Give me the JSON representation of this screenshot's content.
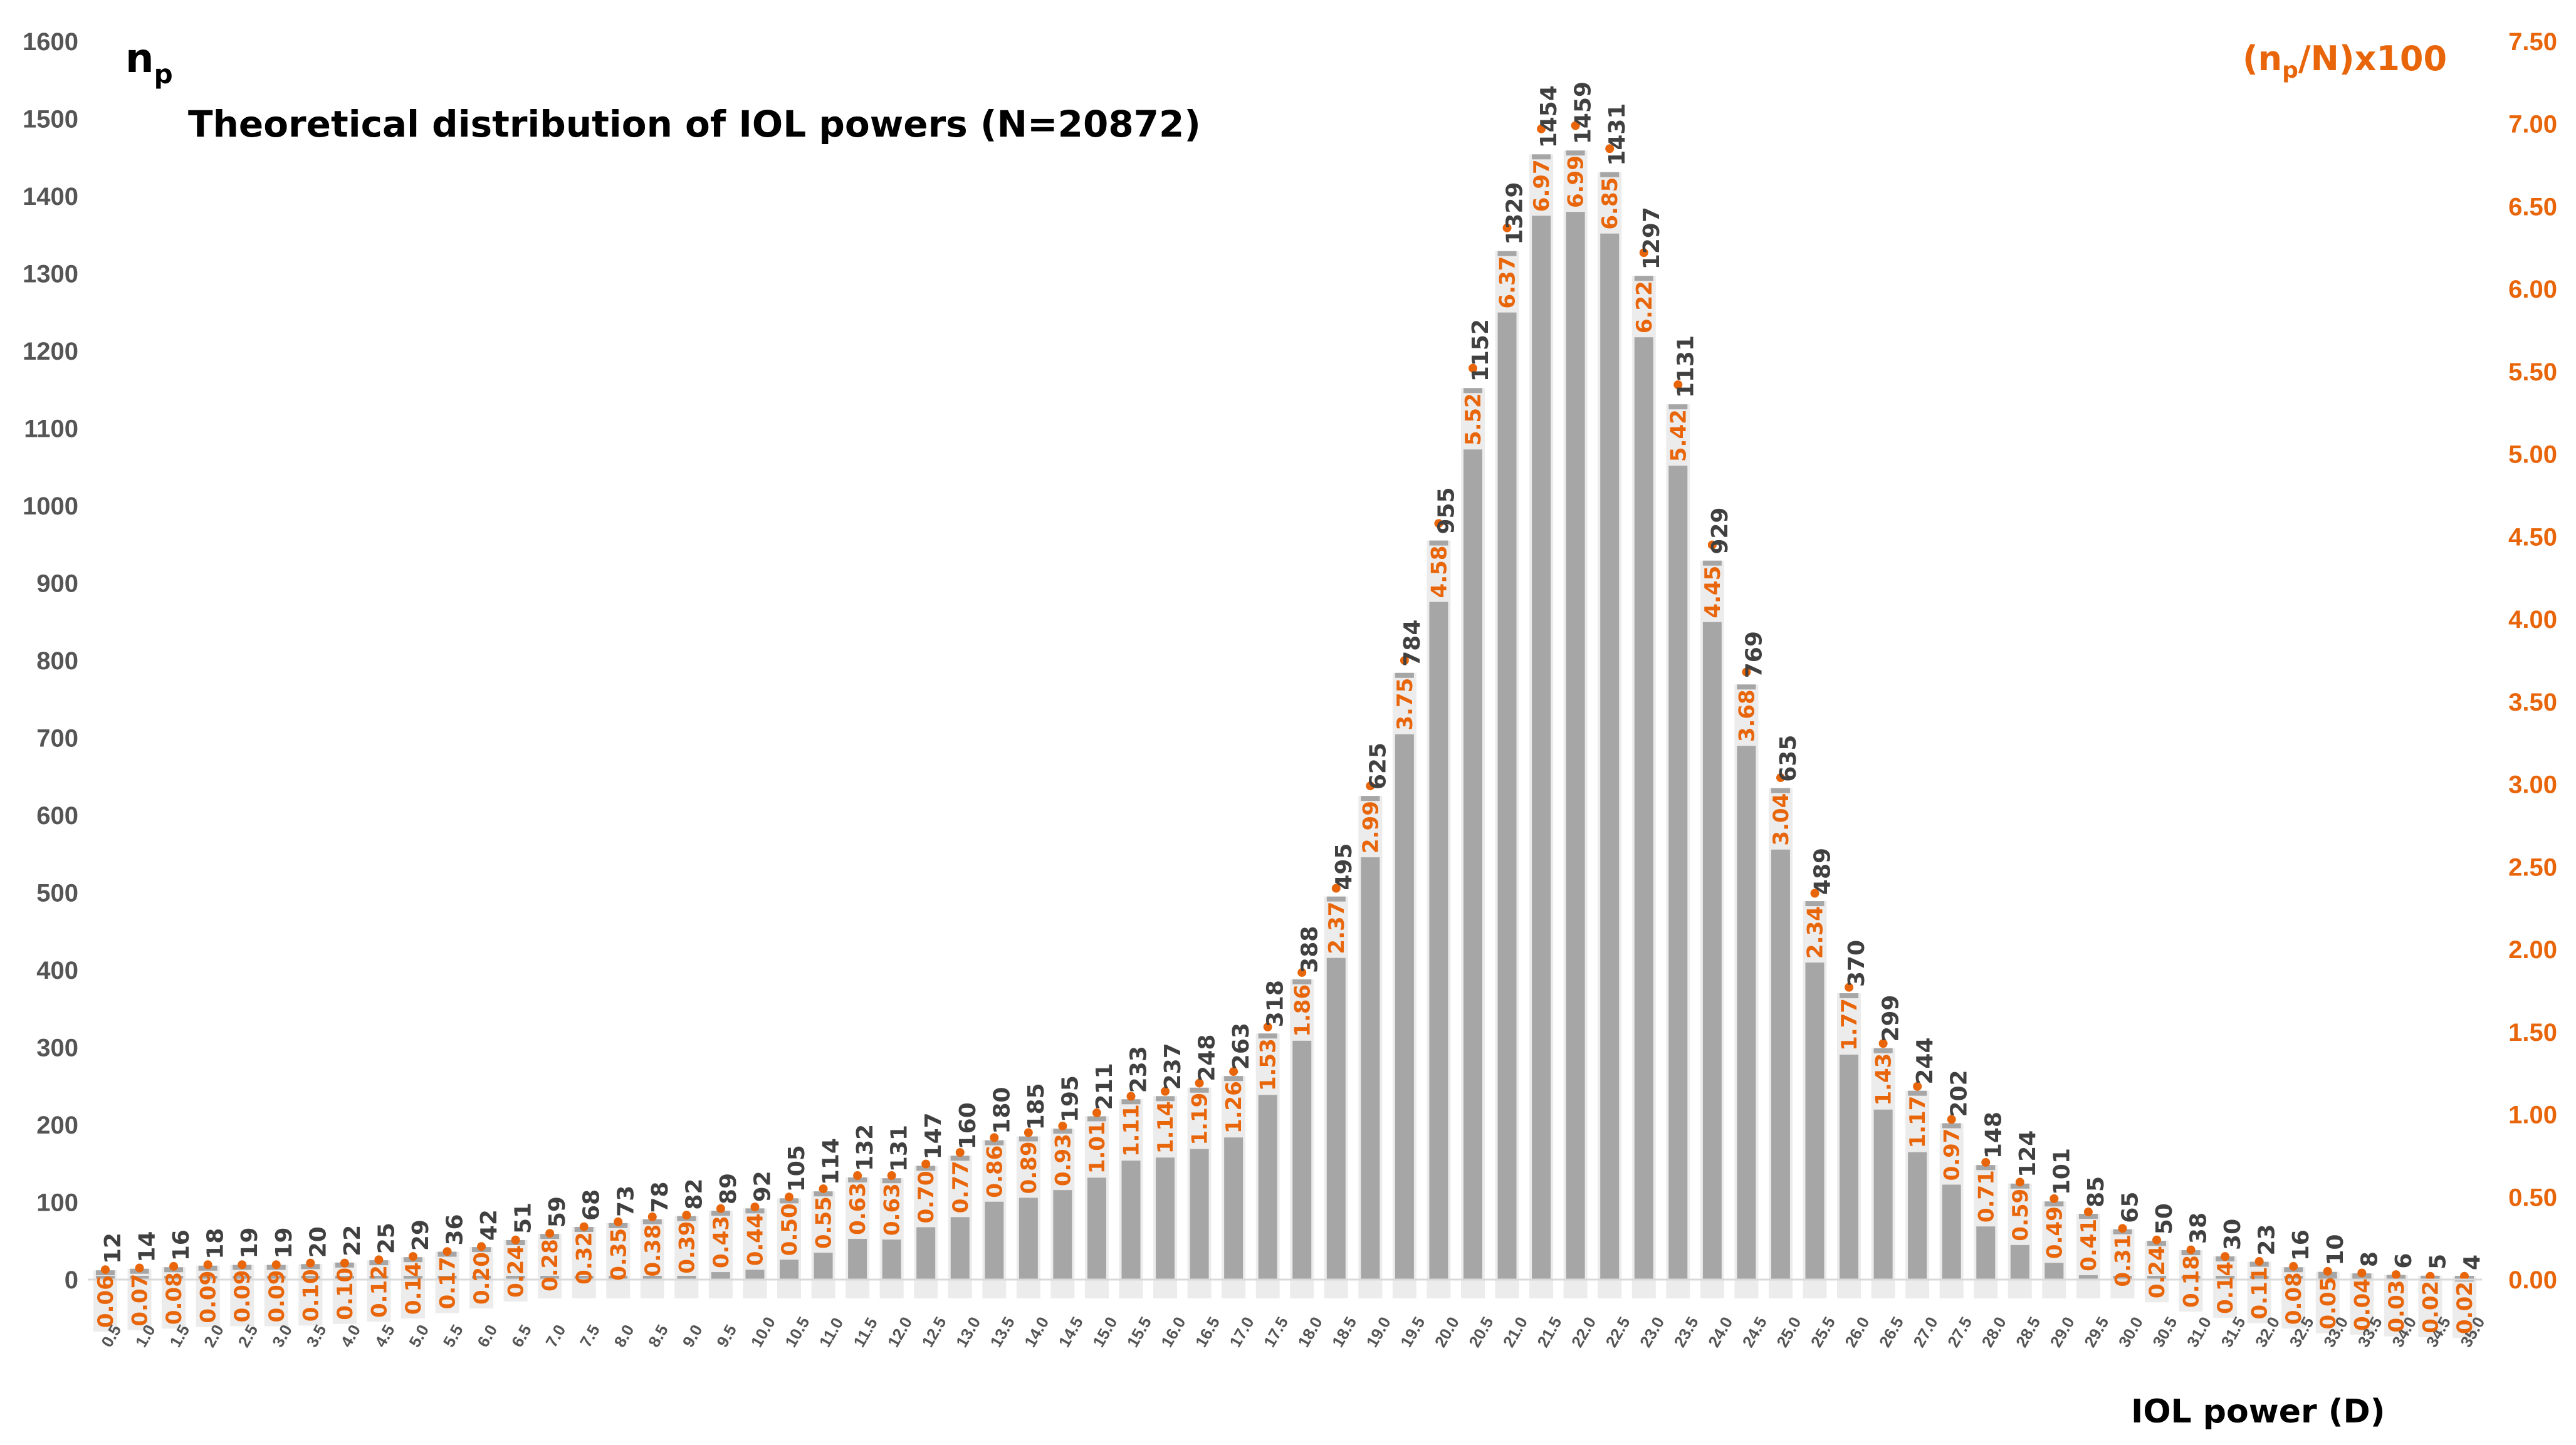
{
  "chart_data": {
    "type": "bar",
    "title": "Theoretical distribution of IOL powers (N=20872)",
    "xlabel": "IOL power (D)",
    "ylabel": "n",
    "ylabel_sub": "p",
    "ylabel_right": "(n",
    "ylabel_right_sub": "p",
    "ylabel_right_tail": "/N)x100",
    "ylim": [
      0,
      1600
    ],
    "ylim_right": [
      0,
      7.5
    ],
    "y_ticks": [
      "0",
      "100",
      "200",
      "300",
      "400",
      "500",
      "600",
      "700",
      "800",
      "900",
      "1000",
      "1100",
      "1200",
      "1300",
      "1400",
      "1500",
      "1600"
    ],
    "y_ticks_right": [
      "0.00",
      "0.50",
      "1.00",
      "1.50",
      "2.00",
      "2.50",
      "3.00",
      "3.50",
      "4.00",
      "4.50",
      "5.00",
      "5.50",
      "6.00",
      "6.50",
      "7.00",
      "7.50"
    ],
    "categories": [
      "0.5",
      "1.0",
      "1.5",
      "2.0",
      "2.5",
      "3.0",
      "3.5",
      "4.0",
      "4.5",
      "5.0",
      "5.5",
      "6.0",
      "6.5",
      "7.0",
      "7.5",
      "8.0",
      "8.5",
      "9.0",
      "9.5",
      "10.0",
      "10.5",
      "11.0",
      "11.5",
      "12.0",
      "12.5",
      "13.0",
      "13.5",
      "14.0",
      "14.5",
      "15.0",
      "15.5",
      "16.0",
      "16.5",
      "17.0",
      "17.5",
      "18.0",
      "18.5",
      "19.0",
      "19.5",
      "20.0",
      "20.5",
      "21.0",
      "21.5",
      "22.0",
      "22.5",
      "23.0",
      "23.5",
      "24.0",
      "24.5",
      "25.0",
      "25.5",
      "26.0",
      "26.5",
      "27.0",
      "27.5",
      "28.0",
      "28.5",
      "29.0",
      "29.5",
      "30.0",
      "30.5",
      "31.0",
      "31.5",
      "32.0",
      "32.5",
      "33.0",
      "33.5",
      "34.0",
      "34.5",
      "35.0"
    ],
    "series": [
      {
        "name": "n_p",
        "axis": "left",
        "values": [
          12,
          14,
          16,
          18,
          19,
          19,
          20,
          22,
          25,
          29,
          36,
          42,
          51,
          59,
          68,
          73,
          78,
          82,
          89,
          92,
          105,
          114,
          132,
          131,
          147,
          160,
          180,
          185,
          195,
          211,
          233,
          237,
          248,
          263,
          318,
          388,
          495,
          625,
          784,
          955,
          1152,
          1329,
          1454,
          1459,
          1431,
          1297,
          1131,
          929,
          769,
          635,
          489,
          370,
          299,
          244,
          202,
          148,
          124,
          101,
          85,
          65,
          50,
          38,
          30,
          23,
          16,
          10,
          8,
          6,
          5,
          4
        ]
      },
      {
        "name": "(n_p/N)x100",
        "axis": "right",
        "labels": [
          "0.06",
          "0.07",
          "0.08",
          "0.09",
          "0.09",
          "0.09",
          "0.10",
          "0.10",
          "0.12",
          "0.14",
          "0.17",
          "0.20",
          "0.24",
          "0.28",
          "0.32",
          "0.35",
          "0.38",
          "0.39",
          "0.43",
          "0.44",
          "0.50",
          "0.55",
          "0.63",
          "0.63",
          "0.70",
          "0.77",
          "0.86",
          "0.89",
          "0.93",
          "1.01",
          "1.11",
          "1.14",
          "1.19",
          "1.26",
          "1.53",
          "1.86",
          "2.37",
          "2.99",
          "3.75",
          "4.58",
          "5.52",
          "6.37",
          "6.97",
          "6.99",
          "6.85",
          "6.22",
          "5.42",
          "4.45",
          "3.68",
          "3.04",
          "2.34",
          "1.77",
          "1.43",
          "1.17",
          "0.97",
          "0.71",
          "0.59",
          "0.49",
          "0.41",
          "0.31",
          "0.24",
          "0.18",
          "0.14",
          "0.11",
          "0.08",
          "0.05",
          "0.04",
          "0.03",
          "0.02",
          "0.02"
        ]
      }
    ],
    "colors": {
      "bar": "#a6a6a6",
      "bar_box": "#ececec",
      "left_axis": "#555555",
      "right_axis": "#e8650a",
      "count_label": "#404040"
    }
  }
}
